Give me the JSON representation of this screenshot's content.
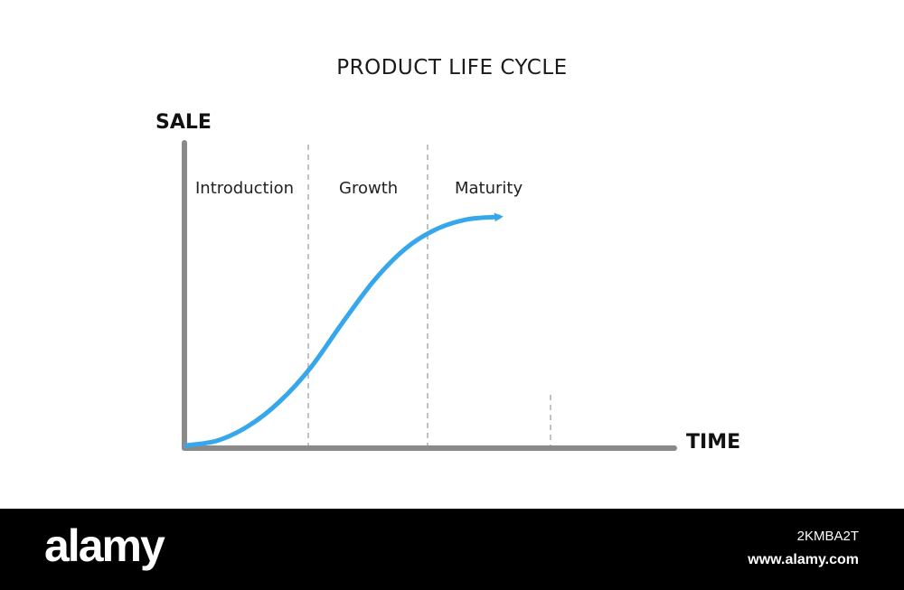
{
  "chart_data": {
    "type": "line",
    "title": "PRODUCT LIFE CYCLE",
    "xlabel": "TIME",
    "ylabel": "SALE",
    "phases": [
      "Introduction",
      "Growth",
      "Maturity"
    ],
    "series": [
      {
        "x": [
          0,
          0.5,
          1,
          1.5,
          2,
          2.5,
          3,
          3.5,
          4,
          4.5,
          5
        ],
        "values": [
          0,
          2,
          8,
          18,
          32,
          50,
          67,
          80,
          88,
          92,
          93
        ]
      }
    ],
    "grid": false,
    "colors": {
      "curve": "#35a7ea",
      "axis": "#8a8a8a",
      "divider": "#9a9a9a"
    }
  },
  "watermark": {
    "brand": "alamy",
    "image_id": "2KMBA2T",
    "site": "www.alamy.com"
  }
}
